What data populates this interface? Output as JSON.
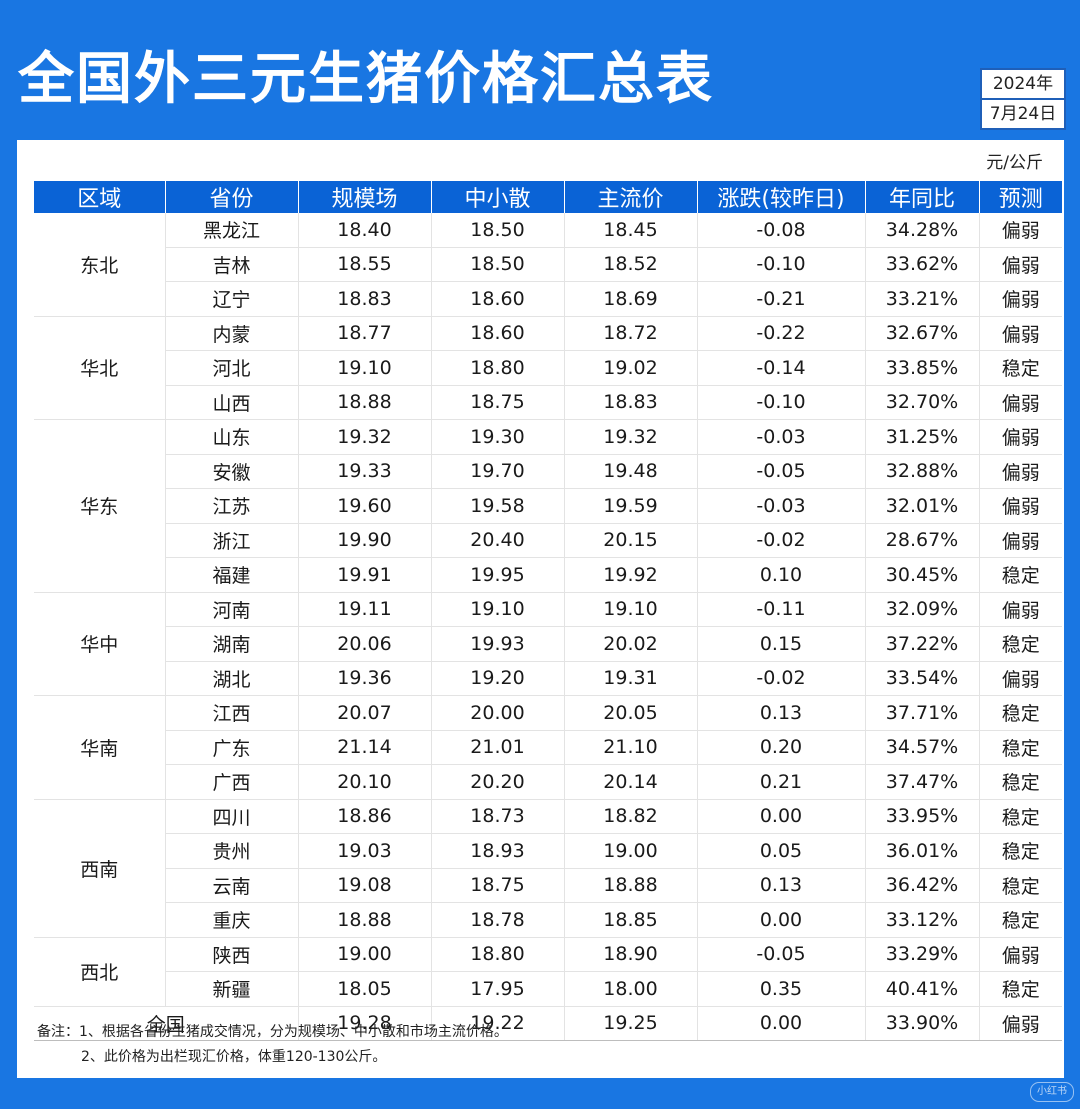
{
  "title": "全国外三元生猪价格汇总表",
  "date": {
    "year": "2024年",
    "day": "7月24日"
  },
  "unit": "元/公斤",
  "headers": [
    "区域",
    "省份",
    "规模场",
    "中小散",
    "主流价",
    "涨跌(较昨日)",
    "年同比",
    "预测"
  ],
  "regions": [
    {
      "name": "东北",
      "rows": [
        {
          "province": "黑龙江",
          "large": "18.40",
          "small": "18.50",
          "main": "18.45",
          "change": "-0.08",
          "yoy": "34.28%",
          "forecast": "偏弱"
        },
        {
          "province": "吉林",
          "large": "18.55",
          "small": "18.50",
          "main": "18.52",
          "change": "-0.10",
          "yoy": "33.62%",
          "forecast": "偏弱"
        },
        {
          "province": "辽宁",
          "large": "18.83",
          "small": "18.60",
          "main": "18.69",
          "change": "-0.21",
          "yoy": "33.21%",
          "forecast": "偏弱"
        }
      ]
    },
    {
      "name": "华北",
      "rows": [
        {
          "province": "内蒙",
          "large": "18.77",
          "small": "18.60",
          "main": "18.72",
          "change": "-0.22",
          "yoy": "32.67%",
          "forecast": "偏弱"
        },
        {
          "province": "河北",
          "large": "19.10",
          "small": "18.80",
          "main": "19.02",
          "change": "-0.14",
          "yoy": "33.85%",
          "forecast": "稳定"
        },
        {
          "province": "山西",
          "large": "18.88",
          "small": "18.75",
          "main": "18.83",
          "change": "-0.10",
          "yoy": "32.70%",
          "forecast": "偏弱"
        }
      ]
    },
    {
      "name": "华东",
      "rows": [
        {
          "province": "山东",
          "large": "19.32",
          "small": "19.30",
          "main": "19.32",
          "change": "-0.03",
          "yoy": "31.25%",
          "forecast": "偏弱"
        },
        {
          "province": "安徽",
          "large": "19.33",
          "small": "19.70",
          "main": "19.48",
          "change": "-0.05",
          "yoy": "32.88%",
          "forecast": "偏弱"
        },
        {
          "province": "江苏",
          "large": "19.60",
          "small": "19.58",
          "main": "19.59",
          "change": "-0.03",
          "yoy": "32.01%",
          "forecast": "偏弱"
        },
        {
          "province": "浙江",
          "large": "19.90",
          "small": "20.40",
          "main": "20.15",
          "change": "-0.02",
          "yoy": "28.67%",
          "forecast": "偏弱"
        },
        {
          "province": "福建",
          "large": "19.91",
          "small": "19.95",
          "main": "19.92",
          "change": "0.10",
          "yoy": "30.45%",
          "forecast": "稳定"
        }
      ]
    },
    {
      "name": "华中",
      "rows": [
        {
          "province": "河南",
          "large": "19.11",
          "small": "19.10",
          "main": "19.10",
          "change": "-0.11",
          "yoy": "32.09%",
          "forecast": "偏弱"
        },
        {
          "province": "湖南",
          "large": "20.06",
          "small": "19.93",
          "main": "20.02",
          "change": "0.15",
          "yoy": "37.22%",
          "forecast": "稳定"
        },
        {
          "province": "湖北",
          "large": "19.36",
          "small": "19.20",
          "main": "19.31",
          "change": "-0.02",
          "yoy": "33.54%",
          "forecast": "偏弱"
        }
      ]
    },
    {
      "name": "华南",
      "rows": [
        {
          "province": "江西",
          "large": "20.07",
          "small": "20.00",
          "main": "20.05",
          "change": "0.13",
          "yoy": "37.71%",
          "forecast": "稳定"
        },
        {
          "province": "广东",
          "large": "21.14",
          "small": "21.01",
          "main": "21.10",
          "change": "0.20",
          "yoy": "34.57%",
          "forecast": "稳定"
        },
        {
          "province": "广西",
          "large": "20.10",
          "small": "20.20",
          "main": "20.14",
          "change": "0.21",
          "yoy": "37.47%",
          "forecast": "稳定"
        }
      ]
    },
    {
      "name": "西南",
      "rows": [
        {
          "province": "四川",
          "large": "18.86",
          "small": "18.73",
          "main": "18.82",
          "change": "0.00",
          "yoy": "33.95%",
          "forecast": "稳定"
        },
        {
          "province": "贵州",
          "large": "19.03",
          "small": "18.93",
          "main": "19.00",
          "change": "0.05",
          "yoy": "36.01%",
          "forecast": "稳定"
        },
        {
          "province": "云南",
          "large": "19.08",
          "small": "18.75",
          "main": "18.88",
          "change": "0.13",
          "yoy": "36.42%",
          "forecast": "稳定"
        },
        {
          "province": "重庆",
          "large": "18.88",
          "small": "18.78",
          "main": "18.85",
          "change": "0.00",
          "yoy": "33.12%",
          "forecast": "稳定"
        }
      ]
    },
    {
      "name": "西北",
      "rows": [
        {
          "province": "陕西",
          "large": "19.00",
          "small": "18.80",
          "main": "18.90",
          "change": "-0.05",
          "yoy": "33.29%",
          "forecast": "偏弱"
        },
        {
          "province": "新疆",
          "large": "18.05",
          "small": "17.95",
          "main": "18.00",
          "change": "0.35",
          "yoy": "40.41%",
          "forecast": "稳定"
        }
      ]
    }
  ],
  "total": {
    "label": "全国",
    "large": "19.28",
    "small": "19.22",
    "main": "19.25",
    "change": "0.00",
    "yoy": "33.90%",
    "forecast": "偏弱"
  },
  "notes": [
    "备注：1、根据各省份生猪成交情况，分为规模场、中小散和市场主流价格。",
    "2、此价格为出栏现汇价格，体重120-130公斤。"
  ],
  "watermark": "小红书",
  "colors": {
    "background": "#1976e2",
    "header": "#0a63d6",
    "up": "#e84848",
    "down": "#16a9a1"
  }
}
